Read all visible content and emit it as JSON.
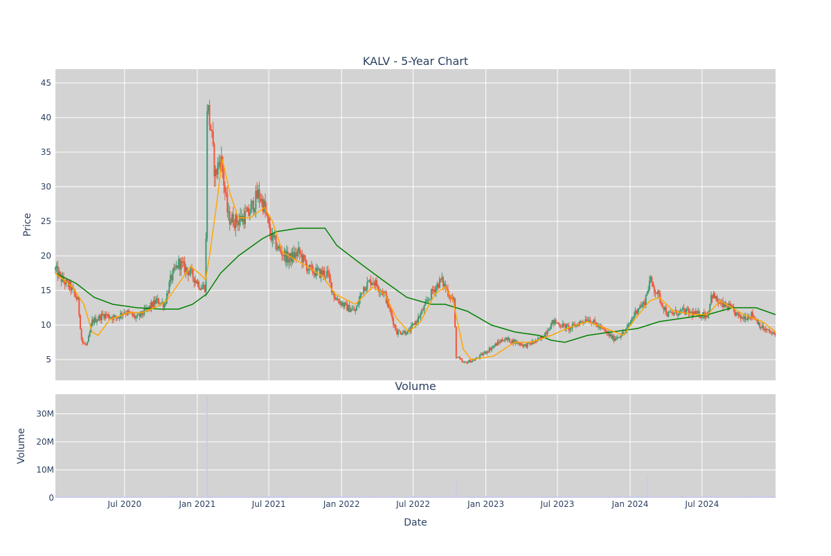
{
  "chart_data": [
    {
      "type": "candlestick",
      "title": "KALV - 5-Year Chart",
      "ylabel": "Price",
      "ylim": [
        2,
        47
      ],
      "y_ticks": [
        5,
        10,
        15,
        20,
        25,
        30,
        35,
        40,
        45
      ],
      "x_range": [
        "2020-01-08",
        "2025-01-03"
      ],
      "grid": true,
      "colors": {
        "background": "#d3d3d3",
        "increasing": "#3d9970",
        "decreasing": "#ef553b",
        "ma_short": "#ffa500",
        "ma_long": "#008000"
      },
      "price_path": [
        [
          "2020-01-08",
          18.0
        ],
        [
          "2020-01-25",
          16.5
        ],
        [
          "2020-02-15",
          15.5
        ],
        [
          "2020-03-05",
          13.5
        ],
        [
          "2020-03-15",
          7.5
        ],
        [
          "2020-03-28",
          7.0
        ],
        [
          "2020-04-10",
          10.5
        ],
        [
          "2020-05-10",
          11.5
        ],
        [
          "2020-06-10",
          11.0
        ],
        [
          "2020-07-01",
          12.0
        ],
        [
          "2020-08-01",
          11.0
        ],
        [
          "2020-09-01",
          12.5
        ],
        [
          "2020-09-20",
          13.5
        ],
        [
          "2020-10-10",
          13.0
        ],
        [
          "2020-10-25",
          16.5
        ],
        [
          "2020-11-15",
          19.0
        ],
        [
          "2020-12-15",
          17.5
        ],
        [
          "2021-01-10",
          15.5
        ],
        [
          "2021-01-22",
          15.5
        ],
        [
          "2021-01-26",
          42.0
        ],
        [
          "2021-02-05",
          38.0
        ],
        [
          "2021-02-15",
          31.5
        ],
        [
          "2021-03-01",
          34.5
        ],
        [
          "2021-03-20",
          25.5
        ],
        [
          "2021-04-10",
          25.0
        ],
        [
          "2021-05-10",
          26.0
        ],
        [
          "2021-06-05",
          29.0
        ],
        [
          "2021-06-20",
          27.0
        ],
        [
          "2021-07-05",
          23.0
        ],
        [
          "2021-07-25",
          21.0
        ],
        [
          "2021-08-20",
          19.5
        ],
        [
          "2021-09-15",
          20.5
        ],
        [
          "2021-10-10",
          18.0
        ],
        [
          "2021-11-05",
          17.5
        ],
        [
          "2021-11-25",
          17.5
        ],
        [
          "2021-12-15",
          14.0
        ],
        [
          "2022-01-15",
          12.5
        ],
        [
          "2022-02-05",
          12.0
        ],
        [
          "2022-02-25",
          15.5
        ],
        [
          "2022-03-20",
          16.5
        ],
        [
          "2022-04-20",
          14.5
        ],
        [
          "2022-05-20",
          9.0
        ],
        [
          "2022-06-20",
          9.0
        ],
        [
          "2022-07-20",
          11.5
        ],
        [
          "2022-08-20",
          15.0
        ],
        [
          "2022-09-10",
          16.5
        ],
        [
          "2022-10-05",
          14.0
        ],
        [
          "2022-10-12",
          13.5
        ],
        [
          "2022-10-18",
          5.5
        ],
        [
          "2022-11-05",
          4.5
        ],
        [
          "2022-12-05",
          5.0
        ],
        [
          "2023-01-10",
          6.5
        ],
        [
          "2023-02-15",
          8.0
        ],
        [
          "2023-03-20",
          7.5
        ],
        [
          "2023-04-10",
          7.0
        ],
        [
          "2023-05-20",
          8.0
        ],
        [
          "2023-06-20",
          10.5
        ],
        [
          "2023-08-01",
          9.5
        ],
        [
          "2023-09-15",
          11.0
        ],
        [
          "2023-10-20",
          9.5
        ],
        [
          "2023-11-20",
          8.0
        ],
        [
          "2023-12-20",
          9.0
        ],
        [
          "2024-01-20",
          12.5
        ],
        [
          "2024-02-05",
          13.0
        ],
        [
          "2024-02-20",
          16.5
        ],
        [
          "2024-03-10",
          14.5
        ],
        [
          "2024-04-05",
          11.5
        ],
        [
          "2024-05-15",
          12.0
        ],
        [
          "2024-06-20",
          11.5
        ],
        [
          "2024-07-15",
          11.5
        ],
        [
          "2024-07-25",
          14.5
        ],
        [
          "2024-08-15",
          13.0
        ],
        [
          "2024-09-10",
          12.5
        ],
        [
          "2024-10-05",
          11.0
        ],
        [
          "2024-11-05",
          11.5
        ],
        [
          "2024-12-01",
          9.5
        ],
        [
          "2025-01-03",
          8.5
        ]
      ],
      "ma_short": [
        [
          "2020-01-08",
          17.5
        ],
        [
          "2020-02-20",
          15.5
        ],
        [
          "2020-03-20",
          13.0
        ],
        [
          "2020-04-10",
          9.0
        ],
        [
          "2020-04-25",
          8.5
        ],
        [
          "2020-05-25",
          10.8
        ],
        [
          "2020-07-10",
          11.8
        ],
        [
          "2020-08-15",
          11.8
        ],
        [
          "2020-09-15",
          12.5
        ],
        [
          "2020-10-15",
          13.5
        ],
        [
          "2020-11-15",
          16.0
        ],
        [
          "2020-12-15",
          18.5
        ],
        [
          "2021-01-15",
          17.0
        ],
        [
          "2021-01-22",
          16.5
        ],
        [
          "2021-02-01",
          20.0
        ],
        [
          "2021-02-20",
          28.0
        ],
        [
          "2021-03-05",
          34.0
        ],
        [
          "2021-03-25",
          29.0
        ],
        [
          "2021-04-15",
          25.5
        ],
        [
          "2021-05-15",
          25.5
        ],
        [
          "2021-06-20",
          27.0
        ],
        [
          "2021-07-10",
          25.0
        ],
        [
          "2021-08-05",
          20.5
        ],
        [
          "2021-09-05",
          19.5
        ],
        [
          "2021-10-05",
          18.5
        ],
        [
          "2021-11-15",
          17.0
        ],
        [
          "2021-12-15",
          14.5
        ],
        [
          "2022-02-05",
          13.0
        ],
        [
          "2022-03-20",
          15.5
        ],
        [
          "2022-04-20",
          14.5
        ],
        [
          "2022-05-20",
          11.0
        ],
        [
          "2022-06-20",
          9.0
        ],
        [
          "2022-07-20",
          10.5
        ],
        [
          "2022-08-25",
          14.5
        ],
        [
          "2022-09-20",
          15.5
        ],
        [
          "2022-10-10",
          13.5
        ],
        [
          "2022-11-05",
          6.5
        ],
        [
          "2022-11-25",
          5.0
        ],
        [
          "2023-01-20",
          5.5
        ],
        [
          "2023-03-15",
          7.5
        ],
        [
          "2023-04-25",
          7.5
        ],
        [
          "2023-06-15",
          8.5
        ],
        [
          "2023-07-25",
          9.5
        ],
        [
          "2023-09-15",
          10.5
        ],
        [
          "2023-11-01",
          9.5
        ],
        [
          "2023-12-15",
          8.5
        ],
        [
          "2024-01-15",
          11.0
        ],
        [
          "2024-02-20",
          13.5
        ],
        [
          "2024-03-15",
          14.0
        ],
        [
          "2024-04-20",
          12.0
        ],
        [
          "2024-06-15",
          11.5
        ],
        [
          "2024-07-15",
          11.5
        ],
        [
          "2024-08-15",
          13.5
        ],
        [
          "2024-09-15",
          12.5
        ],
        [
          "2024-10-15",
          11.5
        ],
        [
          "2024-12-01",
          10.5
        ],
        [
          "2025-01-03",
          9.0
        ]
      ],
      "ma_long": [
        [
          "2020-01-08",
          17.5
        ],
        [
          "2020-03-01",
          16.0
        ],
        [
          "2020-04-15",
          14.0
        ],
        [
          "2020-06-01",
          13.0
        ],
        [
          "2020-08-01",
          12.5
        ],
        [
          "2020-10-01",
          12.3
        ],
        [
          "2020-11-15",
          12.3
        ],
        [
          "2020-12-20",
          13.0
        ],
        [
          "2021-01-25",
          14.5
        ],
        [
          "2021-03-01",
          17.5
        ],
        [
          "2021-04-15",
          20.0
        ],
        [
          "2021-06-15",
          22.5
        ],
        [
          "2021-07-20",
          23.5
        ],
        [
          "2021-09-15",
          24.0
        ],
        [
          "2021-11-20",
          24.0
        ],
        [
          "2021-12-20",
          21.5
        ],
        [
          "2022-02-15",
          19.0
        ],
        [
          "2022-04-15",
          16.5
        ],
        [
          "2022-06-15",
          14.0
        ],
        [
          "2022-08-15",
          13.0
        ],
        [
          "2022-09-20",
          13.0
        ],
        [
          "2022-11-15",
          12.0
        ],
        [
          "2023-01-15",
          10.0
        ],
        [
          "2023-03-15",
          9.0
        ],
        [
          "2023-05-15",
          8.5
        ],
        [
          "2023-06-15",
          7.8
        ],
        [
          "2023-07-20",
          7.5
        ],
        [
          "2023-09-15",
          8.5
        ],
        [
          "2023-11-15",
          9.0
        ],
        [
          "2024-01-20",
          9.5
        ],
        [
          "2024-03-15",
          10.5
        ],
        [
          "2024-05-15",
          11.0
        ],
        [
          "2024-07-15",
          11.5
        ],
        [
          "2024-09-15",
          12.5
        ],
        [
          "2024-11-15",
          12.5
        ],
        [
          "2025-01-03",
          11.5
        ]
      ]
    },
    {
      "type": "bar",
      "title": "Volume",
      "xlabel": "Date",
      "ylabel": "Volume",
      "ylim": [
        0,
        37000000
      ],
      "y_ticks": [
        {
          "value": 0,
          "label": "0"
        },
        {
          "value": 10000000,
          "label": "10M"
        },
        {
          "value": 20000000,
          "label": "20M"
        },
        {
          "value": 30000000,
          "label": "30M"
        }
      ],
      "x_ticks": [
        {
          "date": "2020-07-01",
          "label": "Jul 2020"
        },
        {
          "date": "2021-01-01",
          "label": "Jan 2021"
        },
        {
          "date": "2021-07-01",
          "label": "Jul 2021"
        },
        {
          "date": "2022-01-01",
          "label": "Jan 2022"
        },
        {
          "date": "2022-07-01",
          "label": "Jul 2022"
        },
        {
          "date": "2023-01-01",
          "label": "Jan 2023"
        },
        {
          "date": "2023-07-01",
          "label": "Jul 2023"
        },
        {
          "date": "2024-01-01",
          "label": "Jan 2024"
        },
        {
          "date": "2024-07-01",
          "label": "Jul 2024"
        }
      ],
      "spikes": [
        {
          "date": "2021-01-26",
          "value": 36000000
        },
        {
          "date": "2021-01-27",
          "value": 4500000
        },
        {
          "date": "2022-10-18",
          "value": 6000000
        },
        {
          "date": "2024-02-14",
          "value": 7500000
        }
      ],
      "baseline_value": 500000,
      "bar_color": "#c8c8f0"
    }
  ]
}
